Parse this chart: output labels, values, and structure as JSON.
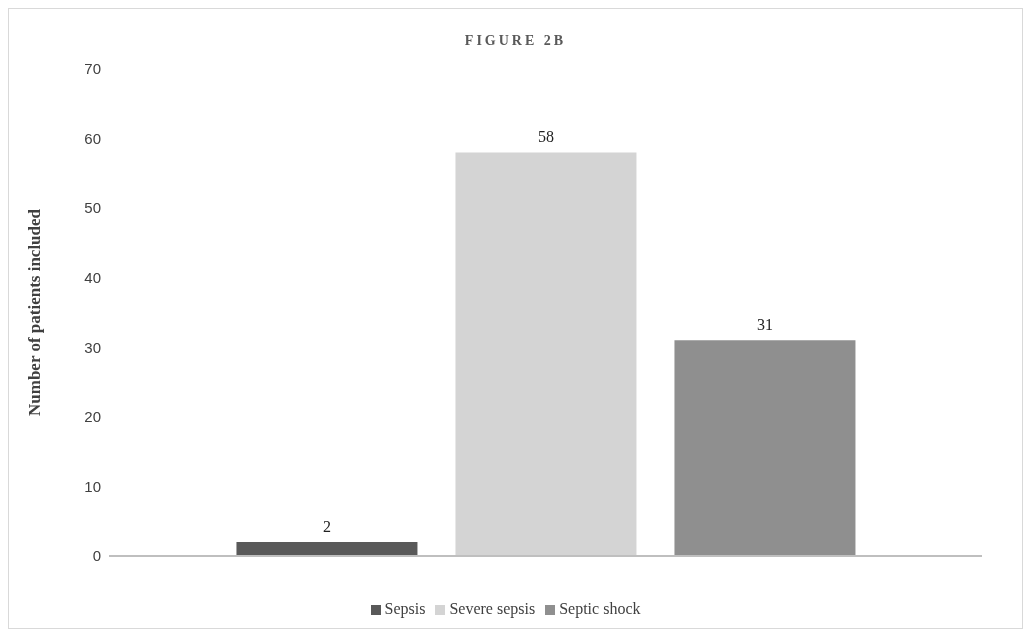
{
  "chart_data": {
    "type": "bar",
    "title": "FIGURE 2B",
    "ylabel": "Number of patients included",
    "categories": [
      null
    ],
    "series": [
      {
        "name": "Sepsis",
        "color": "#595959",
        "values": [
          2
        ]
      },
      {
        "name": "Severe sepsis",
        "color": "#d4d4d4",
        "values": [
          58
        ]
      },
      {
        "name": "Septic shock",
        "color": "#8f8f8f",
        "values": [
          31
        ]
      }
    ],
    "ylim": [
      0,
      70
    ],
    "yticks": [
      0,
      10,
      20,
      30,
      40,
      50,
      60,
      70
    ],
    "grid": false,
    "legend": "bottom",
    "data_labels": true
  }
}
